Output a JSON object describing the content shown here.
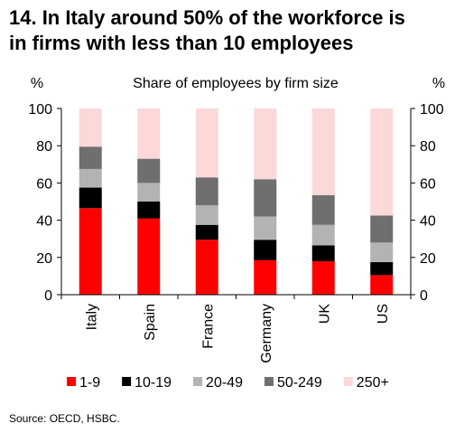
{
  "title": {
    "line1": "14. In Italy around 50% of the workforce is",
    "line2": "in firms with less than 10 employees"
  },
  "source": "Source: OECD, HSBC.",
  "chart_data": {
    "type": "bar",
    "stacked": true,
    "title": "Share of employees by firm size",
    "ylabel_left": "%",
    "ylabel_right": "%",
    "ylim": [
      0,
      100
    ],
    "yticks": [
      0,
      20,
      40,
      60,
      80,
      100
    ],
    "categories": [
      "Italy",
      "Spain",
      "France",
      "Germany",
      "UK",
      "US"
    ],
    "series": [
      {
        "name": "1-9",
        "color": "#ff0000",
        "values": [
          46.5,
          41,
          29.5,
          18.5,
          18,
          10.5
        ]
      },
      {
        "name": "10-19",
        "color": "#000000",
        "values": [
          11,
          9,
          8,
          11,
          8.5,
          7
        ]
      },
      {
        "name": "20-49",
        "color": "#b3b3b3",
        "values": [
          10,
          10,
          10.5,
          12.5,
          11,
          10.5
        ]
      },
      {
        "name": "50-249",
        "color": "#6f6f6f",
        "values": [
          12,
          13,
          15,
          20,
          16,
          14.5
        ]
      },
      {
        "name": "250+",
        "color": "#fcd8d8",
        "values": [
          20.5,
          27,
          37,
          38,
          46.5,
          57.5
        ]
      }
    ],
    "legend_position": "bottom",
    "grid": false
  }
}
